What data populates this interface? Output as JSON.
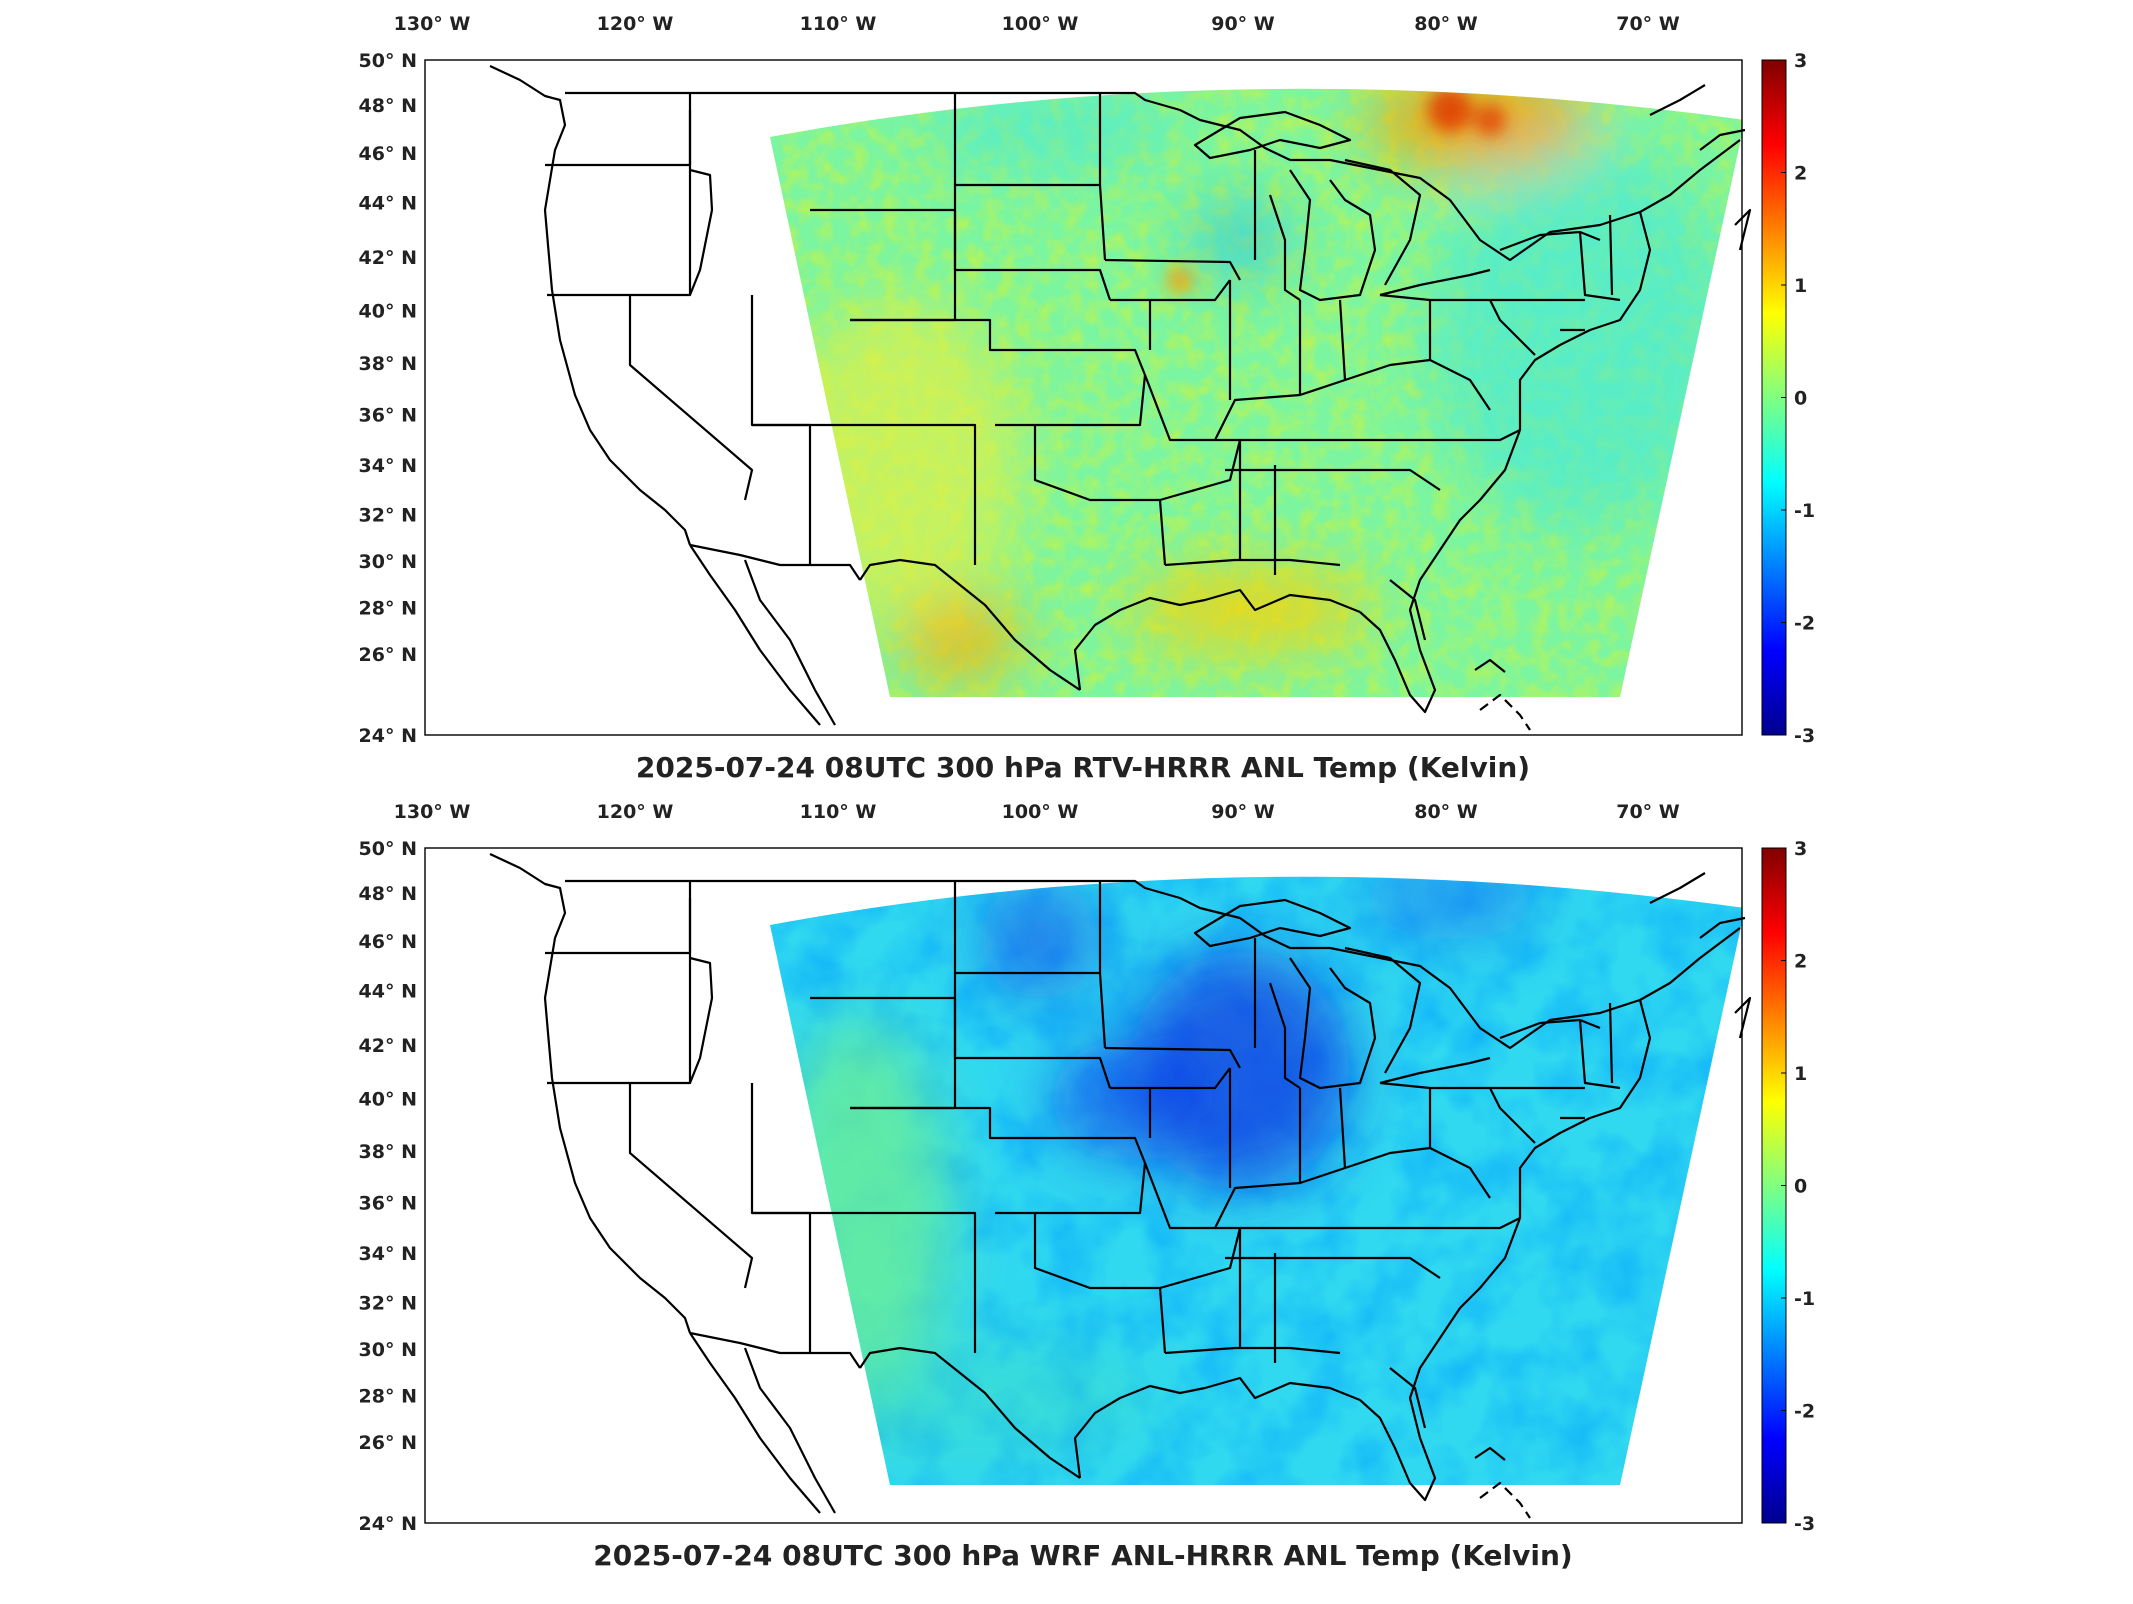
{
  "figure": {
    "panels": [
      {
        "id": "top",
        "title": "2025-07-24 08UTC 300 hPa RTV-HRRR ANL Temp (Kelvin)",
        "field": "Temperature difference",
        "units": "Kelvin",
        "pattern": "mostly near zero (green/yellow), warm patches over SE Canada, Gulf coast and Texas"
      },
      {
        "id": "bottom",
        "title": "2025-07-24 08UTC 300 hPa WRF ANL-HRRR ANL Temp (Kelvin)",
        "field": "Temperature difference",
        "units": "Kelvin",
        "pattern": "mostly negative (cyan/blue), strongest cold bias over Upper Midwest and Great Lakes"
      }
    ],
    "lon_ticks": [
      "130° W",
      "120° W",
      "110° W",
      "100° W",
      "90° W",
      "80° W",
      "70° W"
    ],
    "lat_ticks": [
      "50° N",
      "48° N",
      "46° N",
      "44° N",
      "42° N",
      "40° N",
      "38° N",
      "36° N",
      "34° N",
      "32° N",
      "30° N",
      "28° N",
      "26° N",
      "24° N"
    ],
    "colorbar": {
      "min": -3,
      "max": 3,
      "ticks": [
        "3",
        "2",
        "1",
        "0",
        "-1",
        "-2",
        "-3"
      ],
      "colormap": "jet",
      "colors": [
        "#00008f",
        "#0000ff",
        "#0080ff",
        "#00ffff",
        "#80ff80",
        "#ffff00",
        "#ff8000",
        "#ff0000",
        "#800000"
      ]
    }
  }
}
